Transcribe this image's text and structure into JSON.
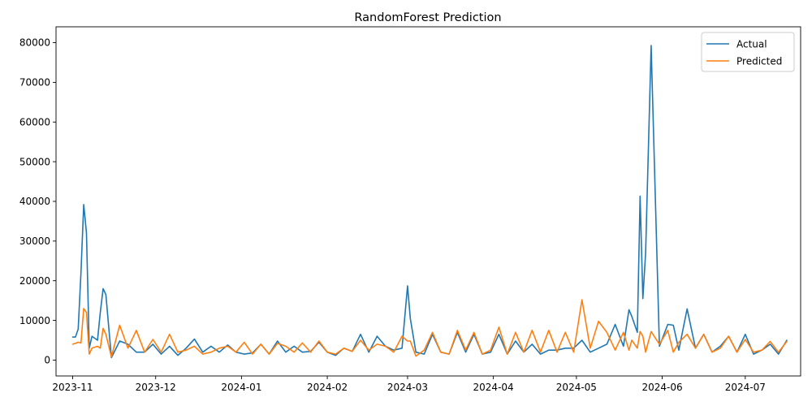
{
  "chart_data": {
    "type": "line",
    "title": "RandomForest Prediction",
    "xlabel": "",
    "ylabel": "",
    "x_range": [
      "2023-10-26",
      "2024-07-21"
    ],
    "ylim": [
      -4000,
      84000
    ],
    "y_ticks": [
      0,
      10000,
      20000,
      30000,
      40000,
      50000,
      60000,
      70000,
      80000
    ],
    "x_ticks": [
      "2023-11-01",
      "2023-12-01",
      "2024-01-01",
      "2024-02-01",
      "2024-03-01",
      "2024-04-01",
      "2024-05-01",
      "2024-06-01",
      "2024-07-01"
    ],
    "x_tick_labels": [
      "2023-11",
      "2023-12",
      "2024-01",
      "2024-02",
      "2024-03",
      "2024-04",
      "2024-05",
      "2024-06",
      "2024-07"
    ],
    "grid": false,
    "legend": "top-right",
    "x": [
      "2023-11-01",
      "2023-11-02",
      "2023-11-03",
      "2023-11-04",
      "2023-11-05",
      "2023-11-06",
      "2023-11-07",
      "2023-11-08",
      "2023-11-10",
      "2023-11-11",
      "2023-11-12",
      "2023-11-13",
      "2023-11-15",
      "2023-11-18",
      "2023-11-21",
      "2023-11-24",
      "2023-11-27",
      "2023-11-30",
      "2023-12-03",
      "2023-12-06",
      "2023-12-09",
      "2023-12-12",
      "2023-12-15",
      "2023-12-18",
      "2023-12-21",
      "2023-12-24",
      "2023-12-27",
      "2023-12-30",
      "2024-01-02",
      "2024-01-05",
      "2024-01-08",
      "2024-01-11",
      "2024-01-14",
      "2024-01-17",
      "2024-01-20",
      "2024-01-23",
      "2024-01-26",
      "2024-01-29",
      "2024-02-01",
      "2024-02-04",
      "2024-02-07",
      "2024-02-10",
      "2024-02-13",
      "2024-02-16",
      "2024-02-19",
      "2024-02-22",
      "2024-02-25",
      "2024-02-28",
      "2024-03-01",
      "2024-03-02",
      "2024-03-04",
      "2024-03-07",
      "2024-03-10",
      "2024-03-13",
      "2024-03-16",
      "2024-03-19",
      "2024-03-22",
      "2024-03-25",
      "2024-03-28",
      "2024-03-31",
      "2024-04-03",
      "2024-04-06",
      "2024-04-09",
      "2024-04-12",
      "2024-04-15",
      "2024-04-18",
      "2024-04-21",
      "2024-04-24",
      "2024-04-27",
      "2024-04-30",
      "2024-05-03",
      "2024-05-06",
      "2024-05-09",
      "2024-05-12",
      "2024-05-15",
      "2024-05-18",
      "2024-05-20",
      "2024-05-21",
      "2024-05-23",
      "2024-05-24",
      "2024-05-25",
      "2024-05-26",
      "2024-05-28",
      "2024-05-31",
      "2024-06-03",
      "2024-06-05",
      "2024-06-07",
      "2024-06-10",
      "2024-06-13",
      "2024-06-16",
      "2024-06-19",
      "2024-06-22",
      "2024-06-25",
      "2024-06-28",
      "2024-07-01",
      "2024-07-04",
      "2024-07-07",
      "2024-07-10",
      "2024-07-13",
      "2024-07-16"
    ],
    "series": [
      {
        "name": "Actual",
        "color": "#1f77b4",
        "values": [
          5800,
          5800,
          7800,
          22000,
          39200,
          32000,
          3000,
          6000,
          5000,
          12000,
          18000,
          16500,
          600,
          4800,
          4000,
          2000,
          2000,
          4000,
          1500,
          3500,
          1200,
          3000,
          5300,
          2000,
          3500,
          2000,
          3800,
          2000,
          1500,
          1800,
          4000,
          1500,
          4800,
          2000,
          3500,
          2000,
          2200,
          4500,
          2000,
          1200,
          3000,
          2200,
          6500,
          2000,
          6000,
          3500,
          2500,
          3000,
          18700,
          10500,
          2000,
          1500,
          6500,
          2000,
          1500,
          7000,
          2000,
          6500,
          1500,
          2000,
          6500,
          1500,
          4800,
          2000,
          4000,
          1500,
          2500,
          2500,
          3000,
          3000,
          5000,
          2000,
          3000,
          4000,
          9000,
          3500,
          12700,
          11000,
          7000,
          41300,
          15500,
          27000,
          79300,
          3500,
          9000,
          8800,
          2500,
          12900,
          3000,
          6500,
          2000,
          3500,
          6000,
          2000,
          6500,
          1500,
          2500,
          4000,
          1500,
          5000
        ]
      },
      {
        "name": "Predicted",
        "color": "#ff7f0e",
        "values": [
          4000,
          4200,
          4500,
          4300,
          13000,
          12000,
          1500,
          3000,
          3500,
          3000,
          8000,
          6500,
          800,
          8800,
          3000,
          7500,
          2000,
          5200,
          2000,
          6500,
          2000,
          2500,
          3500,
          1500,
          2000,
          3000,
          3500,
          2000,
          4500,
          1500,
          4000,
          1500,
          4200,
          3500,
          2000,
          4300,
          2000,
          4800,
          2000,
          1500,
          3000,
          2200,
          5000,
          2500,
          4000,
          3500,
          2000,
          6000,
          4800,
          4800,
          1000,
          2500,
          7000,
          2000,
          1500,
          7500,
          2500,
          7000,
          1500,
          2500,
          8300,
          1500,
          7000,
          2000,
          7500,
          2000,
          7500,
          2000,
          7000,
          2000,
          15200,
          3000,
          9800,
          7000,
          2500,
          7000,
          2500,
          5000,
          3000,
          7200,
          6000,
          2000,
          7200,
          4000,
          7500,
          2000,
          4500,
          6500,
          3000,
          6500,
          2000,
          3000,
          6000,
          2000,
          5200,
          2000,
          2500,
          4700,
          2000,
          4700
        ]
      }
    ]
  }
}
